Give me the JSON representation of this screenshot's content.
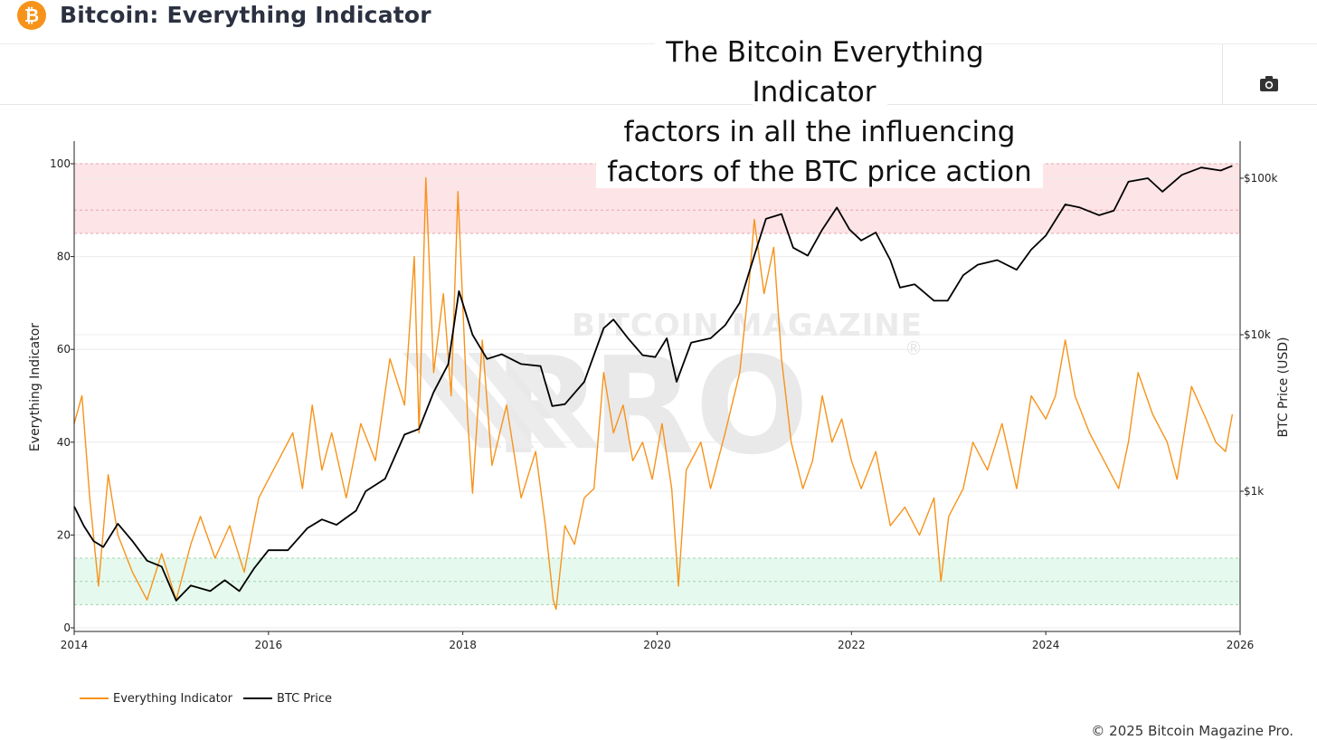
{
  "header": {
    "logo_glyph": "₿",
    "title": "Bitcoin: Everything Indicator"
  },
  "toolbar": {
    "screenshot_icon": "camera-icon"
  },
  "caption": {
    "lines": [
      "The Bitcoin Everything Indicator",
      "factors in all the influencing",
      "factors of the BTC price action"
    ]
  },
  "watermark": {
    "top": "BITCOIN MAGAZINE",
    "main": "PRO",
    "mark": "®"
  },
  "colors": {
    "indicator": "#f7931a",
    "price": "#000000",
    "overheated_band": "#fde4e7",
    "undervalued_band": "#e6f9ee",
    "band_border_red": "#e9a4ab",
    "band_border_green": "#9fd3b2"
  },
  "chart_data": {
    "type": "line",
    "x_axis": {
      "range": [
        2014.0,
        2026.0
      ],
      "ticks": [
        2014,
        2016,
        2018,
        2020,
        2022,
        2024,
        2026
      ],
      "tick_labels": [
        "2014",
        "2016",
        "2018",
        "2020",
        "2022",
        "2024",
        "2026"
      ]
    },
    "y_axis_left": {
      "label": "Everything Indicator",
      "range": [
        0,
        100
      ],
      "ticks": [
        0,
        20,
        40,
        60,
        80,
        100
      ],
      "tick_labels": [
        "0",
        "20",
        "40",
        "60",
        "80",
        "100"
      ]
    },
    "y_axis_right": {
      "label": "BTC Price (USD)",
      "scale": "log",
      "ticks": [
        1000,
        10000,
        100000
      ],
      "tick_labels": [
        "$1k",
        "$10k",
        "$100k"
      ]
    },
    "bands": [
      {
        "zone": "overheated",
        "y_range": [
          85,
          100
        ],
        "dashed_lines": [
          85,
          90,
          100
        ]
      },
      {
        "zone": "undervalued",
        "y_range": [
          5,
          15
        ],
        "dashed_lines": [
          5,
          10,
          15
        ]
      }
    ],
    "grid": true,
    "legend_position": "bottom-left",
    "series": [
      {
        "name": "Everything Indicator",
        "axis": "left",
        "points": [
          [
            2014.0,
            44
          ],
          [
            2014.08,
            50
          ],
          [
            2014.16,
            28
          ],
          [
            2014.25,
            9
          ],
          [
            2014.35,
            33
          ],
          [
            2014.45,
            20
          ],
          [
            2014.6,
            12
          ],
          [
            2014.75,
            6
          ],
          [
            2014.9,
            16
          ],
          [
            2015.05,
            6
          ],
          [
            2015.2,
            18
          ],
          [
            2015.3,
            24
          ],
          [
            2015.45,
            15
          ],
          [
            2015.6,
            22
          ],
          [
            2015.75,
            12
          ],
          [
            2015.9,
            28
          ],
          [
            2016.0,
            32
          ],
          [
            2016.1,
            36
          ],
          [
            2016.25,
            42
          ],
          [
            2016.35,
            30
          ],
          [
            2016.45,
            48
          ],
          [
            2016.55,
            34
          ],
          [
            2016.65,
            42
          ],
          [
            2016.8,
            28
          ],
          [
            2016.95,
            44
          ],
          [
            2017.1,
            36
          ],
          [
            2017.25,
            58
          ],
          [
            2017.4,
            48
          ],
          [
            2017.5,
            80
          ],
          [
            2017.55,
            42
          ],
          [
            2017.62,
            97
          ],
          [
            2017.7,
            55
          ],
          [
            2017.8,
            72
          ],
          [
            2017.88,
            50
          ],
          [
            2017.95,
            94
          ],
          [
            2018.05,
            45
          ],
          [
            2018.1,
            29
          ],
          [
            2018.2,
            62
          ],
          [
            2018.3,
            35
          ],
          [
            2018.45,
            48
          ],
          [
            2018.6,
            28
          ],
          [
            2018.75,
            38
          ],
          [
            2018.85,
            22
          ],
          [
            2018.93,
            6
          ],
          [
            2018.96,
            4
          ],
          [
            2019.05,
            22
          ],
          [
            2019.15,
            18
          ],
          [
            2019.25,
            28
          ],
          [
            2019.35,
            30
          ],
          [
            2019.45,
            55
          ],
          [
            2019.55,
            42
          ],
          [
            2019.65,
            48
          ],
          [
            2019.75,
            36
          ],
          [
            2019.85,
            40
          ],
          [
            2019.95,
            32
          ],
          [
            2020.05,
            44
          ],
          [
            2020.15,
            30
          ],
          [
            2020.22,
            9
          ],
          [
            2020.3,
            34
          ],
          [
            2020.45,
            40
          ],
          [
            2020.55,
            30
          ],
          [
            2020.7,
            42
          ],
          [
            2020.85,
            55
          ],
          [
            2020.95,
            75
          ],
          [
            2021.0,
            88
          ],
          [
            2021.1,
            72
          ],
          [
            2021.2,
            82
          ],
          [
            2021.28,
            58
          ],
          [
            2021.38,
            40
          ],
          [
            2021.5,
            30
          ],
          [
            2021.6,
            36
          ],
          [
            2021.7,
            50
          ],
          [
            2021.8,
            40
          ],
          [
            2021.9,
            45
          ],
          [
            2022.0,
            36
          ],
          [
            2022.1,
            30
          ],
          [
            2022.25,
            38
          ],
          [
            2022.4,
            22
          ],
          [
            2022.55,
            26
          ],
          [
            2022.7,
            20
          ],
          [
            2022.85,
            28
          ],
          [
            2022.92,
            10
          ],
          [
            2023.0,
            24
          ],
          [
            2023.15,
            30
          ],
          [
            2023.25,
            40
          ],
          [
            2023.4,
            34
          ],
          [
            2023.55,
            44
          ],
          [
            2023.7,
            30
          ],
          [
            2023.85,
            50
          ],
          [
            2024.0,
            45
          ],
          [
            2024.1,
            50
          ],
          [
            2024.2,
            62
          ],
          [
            2024.3,
            50
          ],
          [
            2024.45,
            42
          ],
          [
            2024.6,
            36
          ],
          [
            2024.75,
            30
          ],
          [
            2024.85,
            40
          ],
          [
            2024.95,
            55
          ],
          [
            2025.1,
            46
          ],
          [
            2025.25,
            40
          ],
          [
            2025.35,
            32
          ],
          [
            2025.5,
            52
          ],
          [
            2025.65,
            45
          ],
          [
            2025.75,
            40
          ],
          [
            2025.85,
            38
          ],
          [
            2025.92,
            46
          ]
        ]
      },
      {
        "name": "BTC Price",
        "axis": "right",
        "points": [
          [
            2014.0,
            800
          ],
          [
            2014.1,
            600
          ],
          [
            2014.2,
            480
          ],
          [
            2014.3,
            440
          ],
          [
            2014.45,
            620
          ],
          [
            2014.6,
            480
          ],
          [
            2014.75,
            360
          ],
          [
            2014.9,
            330
          ],
          [
            2015.05,
            200
          ],
          [
            2015.2,
            250
          ],
          [
            2015.4,
            230
          ],
          [
            2015.55,
            270
          ],
          [
            2015.7,
            230
          ],
          [
            2015.85,
            320
          ],
          [
            2016.0,
            420
          ],
          [
            2016.2,
            420
          ],
          [
            2016.4,
            580
          ],
          [
            2016.55,
            660
          ],
          [
            2016.7,
            610
          ],
          [
            2016.9,
            750
          ],
          [
            2017.0,
            1000
          ],
          [
            2017.2,
            1200
          ],
          [
            2017.4,
            2300
          ],
          [
            2017.55,
            2500
          ],
          [
            2017.7,
            4300
          ],
          [
            2017.85,
            6500
          ],
          [
            2017.96,
            19000
          ],
          [
            2018.1,
            10000
          ],
          [
            2018.25,
            7000
          ],
          [
            2018.4,
            7500
          ],
          [
            2018.6,
            6500
          ],
          [
            2018.8,
            6300
          ],
          [
            2018.92,
            3500
          ],
          [
            2019.05,
            3600
          ],
          [
            2019.25,
            5000
          ],
          [
            2019.45,
            11000
          ],
          [
            2019.55,
            12500
          ],
          [
            2019.7,
            9500
          ],
          [
            2019.85,
            7400
          ],
          [
            2019.98,
            7200
          ],
          [
            2020.1,
            9500
          ],
          [
            2020.2,
            5000
          ],
          [
            2020.35,
            8900
          ],
          [
            2020.55,
            9500
          ],
          [
            2020.7,
            11500
          ],
          [
            2020.85,
            16000
          ],
          [
            2021.0,
            32000
          ],
          [
            2021.12,
            55000
          ],
          [
            2021.28,
            59000
          ],
          [
            2021.4,
            36000
          ],
          [
            2021.55,
            32000
          ],
          [
            2021.7,
            47000
          ],
          [
            2021.85,
            65000
          ],
          [
            2021.98,
            47000
          ],
          [
            2022.1,
            40000
          ],
          [
            2022.25,
            45000
          ],
          [
            2022.4,
            30000
          ],
          [
            2022.5,
            20000
          ],
          [
            2022.65,
            21000
          ],
          [
            2022.85,
            16500
          ],
          [
            2022.99,
            16500
          ],
          [
            2023.15,
            24000
          ],
          [
            2023.3,
            28000
          ],
          [
            2023.5,
            30000
          ],
          [
            2023.7,
            26000
          ],
          [
            2023.85,
            35000
          ],
          [
            2024.0,
            43000
          ],
          [
            2024.2,
            68000
          ],
          [
            2024.35,
            65000
          ],
          [
            2024.55,
            58000
          ],
          [
            2024.7,
            62000
          ],
          [
            2024.85,
            95000
          ],
          [
            2025.05,
            100000
          ],
          [
            2025.2,
            82000
          ],
          [
            2025.4,
            105000
          ],
          [
            2025.6,
            117000
          ],
          [
            2025.8,
            112000
          ],
          [
            2025.92,
            120000
          ]
        ]
      }
    ]
  },
  "legend": {
    "items": [
      "Everything Indicator",
      "BTC Price"
    ]
  },
  "footer": {
    "copyright": "© 2025 Bitcoin Magazine Pro."
  }
}
